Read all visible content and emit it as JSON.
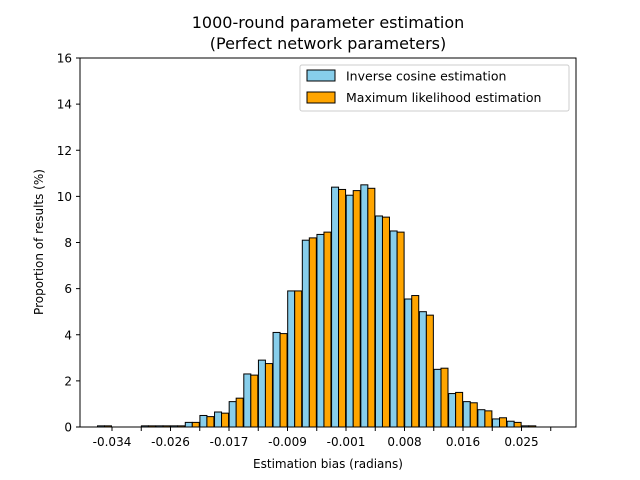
{
  "chart_data": {
    "type": "bar",
    "title": "1000-round parameter estimation",
    "subtitle": "(Perfect network parameters)",
    "xlabel": "Estimation bias (radians)",
    "ylabel": "Proportion of results (%)",
    "ylim": [
      0,
      16
    ],
    "yticks": [
      "0",
      "2",
      "4",
      "6",
      "8",
      "10",
      "12",
      "14",
      "16"
    ],
    "xtick_labels": [
      "-0.034",
      "-0.026",
      "-0.017",
      "-0.009",
      "-0.001",
      "0.008",
      "0.016",
      "0.025"
    ],
    "grid": false,
    "legend_position": "top-right",
    "series": [
      {
        "name": "Inverse cosine estimation",
        "color": "#87CEEB",
        "values": [
          0.05,
          0,
          0,
          0.05,
          0.05,
          0.05,
          0.2,
          0.5,
          0.65,
          1.1,
          2.3,
          2.9,
          4.1,
          5.9,
          8.1,
          8.35,
          10.4,
          10.05,
          10.5,
          9.15,
          8.5,
          5.55,
          5.0,
          2.5,
          1.45,
          1.1,
          0.75,
          0.35,
          0.25,
          0.05,
          0
        ]
      },
      {
        "name": "Maximum likelihood estimation",
        "color": "#FFA500",
        "values": [
          0.05,
          0,
          0,
          0.05,
          0.05,
          0.05,
          0.2,
          0.45,
          0.6,
          1.25,
          2.25,
          2.75,
          4.05,
          5.9,
          8.2,
          8.45,
          10.3,
          10.25,
          10.35,
          9.1,
          8.45,
          5.7,
          4.85,
          2.55,
          1.5,
          1.05,
          0.7,
          0.4,
          0.2,
          0.05,
          0
        ]
      }
    ]
  }
}
